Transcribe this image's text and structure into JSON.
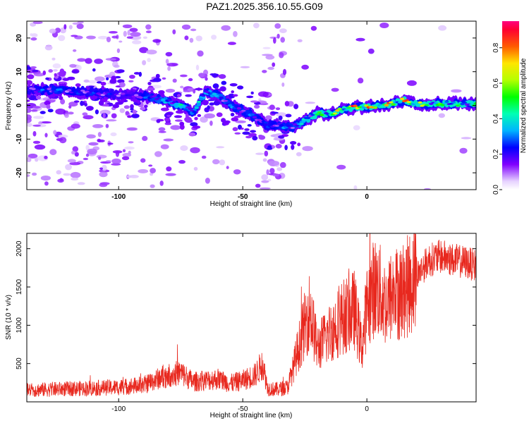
{
  "title": "PAZ1.2025.356.10.55.G09",
  "chart_data": [
    {
      "type": "heatmap",
      "xlabel": "Height of straight line (km)",
      "ylabel": "Frequency (Hz)",
      "xlim": [
        -137,
        44
      ],
      "ylim": [
        -25,
        25
      ],
      "x_ticks": [
        -100,
        -50,
        0
      ],
      "x_tick_labels": [
        "-100",
        "-50",
        "0"
      ],
      "y_ticks": [
        -20,
        -10,
        0,
        10,
        20
      ],
      "y_tick_labels": [
        "-20",
        "-10",
        "0",
        "10",
        "20"
      ],
      "colorbar": {
        "label": "Normalized spectral amplitude",
        "range": [
          0,
          0.95
        ],
        "ticks": [
          0.0,
          0.2,
          0.4,
          0.6,
          0.8
        ],
        "tick_labels": [
          "0.0",
          "0.2",
          "0.4",
          "0.6",
          "0.8"
        ]
      },
      "ridge": {
        "x": [
          -135,
          -125,
          -115,
          -105,
          -95,
          -88,
          -82,
          -75,
          -70,
          -65,
          -60,
          -55,
          -50,
          -45,
          -40,
          -35,
          -30,
          -25,
          -20,
          -15,
          -10,
          -5,
          0,
          5,
          10,
          15,
          20,
          25,
          30,
          35,
          40,
          44
        ],
        "y": [
          4.5,
          4.5,
          4,
          3.5,
          3,
          2.5,
          1.5,
          0,
          -2,
          4,
          3,
          0,
          -1.5,
          -3.5,
          -6,
          -6,
          -6.5,
          -4.5,
          -2.5,
          -2.5,
          -1.5,
          -0.5,
          -0.5,
          0,
          0.5,
          1.5,
          0.5,
          0.5,
          0.5,
          0.5,
          0.5,
          0.5
        ],
        "amplitude": [
          0.25,
          0.3,
          0.25,
          0.25,
          0.2,
          0.3,
          0.35,
          0.4,
          0.35,
          0.4,
          0.35,
          0.3,
          0.3,
          0.3,
          0.25,
          0.3,
          0.3,
          0.4,
          0.5,
          0.65,
          0.75,
          0.8,
          0.85,
          0.7,
          0.8,
          0.85,
          0.75,
          0.6,
          0.55,
          0.5,
          0.45,
          0.45
        ]
      }
    },
    {
      "type": "line",
      "xlabel": "Height of straight line (km)",
      "ylabel": "SNR (10 * v/v)",
      "xlim": [
        -137,
        44
      ],
      "ylim": [
        0,
        2200
      ],
      "x_ticks": [
        -100,
        -50,
        0
      ],
      "x_tick_labels": [
        "-100",
        "-50",
        "0"
      ],
      "y_ticks": [
        500,
        1000,
        1500,
        2000
      ],
      "y_tick_labels": [
        "500",
        "1000",
        "1500",
        "2000"
      ],
      "color": "#e8281e",
      "x": [
        -137,
        -130,
        -120,
        -110,
        -100,
        -90,
        -82,
        -75,
        -70,
        -65,
        -60,
        -55,
        -50,
        -45,
        -42,
        -40,
        -37,
        -35,
        -32,
        -30,
        -28,
        -25,
        -23,
        -20,
        -15,
        -10,
        -5,
        -2,
        0,
        3,
        5,
        8,
        10,
        15,
        20,
        25,
        30,
        35,
        40,
        44
      ],
      "values": [
        150,
        160,
        170,
        180,
        190,
        220,
        330,
        380,
        260,
        280,
        300,
        240,
        280,
        350,
        500,
        180,
        160,
        170,
        190,
        400,
        650,
        1000,
        1200,
        700,
        900,
        1100,
        1200,
        700,
        1250,
        1500,
        1450,
        1250,
        1400,
        1450,
        1650,
        1850,
        1900,
        1850,
        1820,
        1780
      ]
    }
  ]
}
